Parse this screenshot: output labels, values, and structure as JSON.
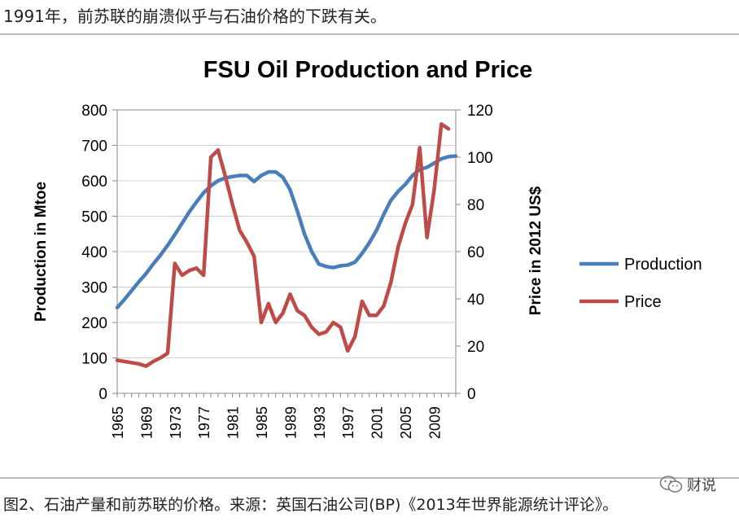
{
  "top_caption": "1991年，前苏联的崩溃似乎与石油价格的下跌有关。",
  "bottom_caption": "图2、石油产量和前苏联的价格。来源：英国石油公司(BP)《2013年世界能源统计评论》。",
  "watermark": {
    "name": "财说",
    "icon": "wechat-icon"
  },
  "colors": {
    "production": "#4a7ebb",
    "price": "#be4b48",
    "grid": "#d0d0d0",
    "axis": "#888888"
  },
  "chart_data": {
    "type": "line",
    "title": "FSU Oil Production and Price",
    "ylabel": "Production in Mtoe",
    "y2label": "Price in 2012 US$",
    "ylim": [
      0,
      800
    ],
    "y2lim": [
      0,
      120
    ],
    "yticks": [
      "0",
      "100",
      "200",
      "300",
      "400",
      "500",
      "600",
      "700",
      "800"
    ],
    "y2ticks": [
      "0",
      "20",
      "40",
      "60",
      "80",
      "100",
      "120"
    ],
    "xticks": [
      "1965",
      "1969",
      "1973",
      "1977",
      "1981",
      "1985",
      "1989",
      "1993",
      "1997",
      "2001",
      "2005",
      "2009"
    ],
    "xlim": [
      1965,
      2012
    ],
    "grid": "horizontal",
    "legend_position": "right",
    "series": [
      {
        "name": "Production",
        "axis": "left",
        "x": [
          1965,
          1966,
          1967,
          1968,
          1969,
          1970,
          1971,
          1972,
          1973,
          1974,
          1975,
          1976,
          1977,
          1978,
          1979,
          1980,
          1981,
          1982,
          1983,
          1984,
          1985,
          1986,
          1987,
          1988,
          1989,
          1990,
          1991,
          1992,
          1993,
          1994,
          1995,
          1996,
          1997,
          1998,
          1999,
          2000,
          2001,
          2002,
          2003,
          2004,
          2005,
          2006,
          2007,
          2008,
          2009,
          2010,
          2011,
          2012
        ],
        "values": [
          242,
          265,
          290,
          315,
          338,
          365,
          390,
          418,
          448,
          480,
          512,
          540,
          566,
          586,
          600,
          608,
          612,
          615,
          615,
          598,
          615,
          625,
          625,
          610,
          575,
          515,
          450,
          400,
          365,
          358,
          355,
          360,
          362,
          370,
          395,
          425,
          460,
          505,
          545,
          570,
          590,
          615,
          632,
          638,
          650,
          662,
          668,
          670
        ]
      },
      {
        "name": "Price",
        "axis": "right",
        "x": [
          1965,
          1966,
          1967,
          1968,
          1969,
          1970,
          1971,
          1972,
          1973,
          1974,
          1975,
          1976,
          1977,
          1978,
          1979,
          1980,
          1981,
          1982,
          1983,
          1984,
          1985,
          1986,
          1987,
          1988,
          1989,
          1990,
          1991,
          1992,
          1993,
          1994,
          1995,
          1996,
          1997,
          1998,
          1999,
          2000,
          2001,
          2002,
          2003,
          2004,
          2005,
          2006,
          2007,
          2008,
          2009,
          2010,
          2011,
          2012
        ],
        "values": [
          14,
          13.5,
          13,
          12.5,
          11.5,
          13.5,
          15,
          17,
          55,
          50,
          52,
          53,
          50,
          100,
          103,
          92,
          80,
          69,
          64,
          58,
          30,
          38,
          30,
          34,
          42,
          35,
          33,
          28,
          25,
          26,
          30,
          28,
          18,
          24,
          39,
          33,
          33,
          37,
          47,
          62,
          72,
          80,
          104,
          66,
          86,
          114,
          112,
          null
        ]
      }
    ]
  }
}
